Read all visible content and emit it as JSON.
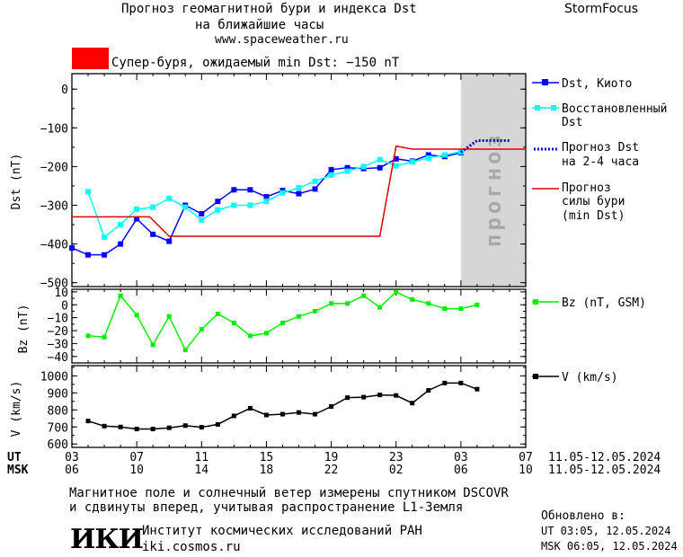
{
  "header": {
    "title_line1": "Прогноз геомагнитной бури и индекса Dst",
    "title_line2": "на ближайшие часы",
    "site": "www.spaceweather.ru",
    "brand": "StormFocus"
  },
  "storm_banner": {
    "text": "Супер-буря, ожидаемый min Dst: −150 nT",
    "color": "#ff0000"
  },
  "forecast_label": "прогноз",
  "legend": {
    "dst_kyoto": "Dst, Киото",
    "restored_1": "Восстановленный",
    "restored_2": "Dst",
    "forecast_1": "Прогноз Dst",
    "forecast_2": "на 2-4 часа",
    "storm_1": "Прогноз",
    "storm_2": "силы бури",
    "storm_3": "(min Dst)",
    "bz": "Bz (nT, GSM)",
    "v": "V (km/s)"
  },
  "axes": {
    "ut_label": "UT",
    "msk_label": "MSK",
    "ut_ticks": [
      "03",
      "07",
      "11",
      "15",
      "19",
      "23",
      "03",
      "07"
    ],
    "msk_ticks": [
      "06",
      "10",
      "14",
      "18",
      "22",
      "02",
      "06",
      "10"
    ],
    "ut_range": "11.05-12.05.2024",
    "msk_range": "11.05-12.05.2024"
  },
  "footer": {
    "note_line1": "Магнитное поле и солнечный ветер измерены спутником DSCOVR",
    "note_line2": "и сдвинуты вперед, учитывая распространение L1-Земля",
    "logo": "ИКИ",
    "institute": "Институт космических исследований РАН",
    "institute_url": "iki.cosmos.ru",
    "updated_label": "Обновлено в:",
    "updated_ut": "UT   03:05, 12.05.2024",
    "updated_msk": "MSK 06:05, 12.05.2024"
  },
  "chart_data": [
    {
      "type": "line",
      "ylabel": "Dst (nT)",
      "ylim": [
        -510,
        40
      ],
      "yticks": [
        0,
        -100,
        -200,
        -300,
        -400,
        -500
      ],
      "xlim": [
        3,
        31
      ],
      "forecast_region": [
        27,
        31
      ],
      "series": [
        {
          "name": "Dst, Киото",
          "color": "#0000ff",
          "marker": "square",
          "x": [
            3,
            4,
            5,
            6,
            7,
            8,
            9,
            10,
            11,
            12,
            13,
            14,
            15,
            16,
            17,
            18,
            19,
            20,
            21,
            22,
            23,
            24,
            25,
            26,
            27
          ],
          "y": [
            -410,
            -428,
            -428,
            -400,
            -335,
            -375,
            -393,
            -300,
            -322,
            -290,
            -260,
            -260,
            -278,
            -262,
            -270,
            -258,
            -208,
            -203,
            -205,
            -203,
            -180,
            -186,
            -170,
            -174,
            -164
          ]
        },
        {
          "name": "Восстановленный Dst",
          "color": "#00ffff",
          "marker": "square",
          "x": [
            4,
            5,
            6,
            7,
            8,
            9,
            10,
            11,
            12,
            13,
            14,
            15,
            16,
            17,
            18,
            19,
            20,
            21,
            22,
            23,
            24,
            25,
            26,
            27
          ],
          "y": [
            -265,
            -382,
            -350,
            -310,
            -305,
            -282,
            -305,
            -338,
            -312,
            -300,
            -300,
            -290,
            -268,
            -255,
            -238,
            -222,
            -212,
            -200,
            -182,
            -198,
            -188,
            -178,
            -170,
            -162
          ]
        },
        {
          "name": "Прогноз Dst на 2-4 часа",
          "color": "#0000cc",
          "dashed": true,
          "x": [
            27,
            28,
            29,
            30
          ],
          "y": [
            -163,
            -133,
            -133,
            -133
          ]
        },
        {
          "name": "Прогноз силы бури (min Dst)",
          "color": "#dd0000",
          "x": [
            3,
            7.8,
            9,
            9.3,
            9.3,
            22,
            23,
            24,
            31
          ],
          "y": [
            -330,
            -330,
            -380,
            -380,
            -380,
            -380,
            -147,
            -155,
            -155
          ]
        }
      ]
    },
    {
      "type": "line",
      "ylabel": "Bz (nT)",
      "ylim": [
        -45,
        12
      ],
      "yticks": [
        10,
        0,
        -10,
        -20,
        -30,
        -40
      ],
      "xlim": [
        3,
        31
      ],
      "series": [
        {
          "name": "Bz (nT, GSM)",
          "color": "#00ee00",
          "marker": "square",
          "x": [
            4,
            5,
            6,
            7,
            8,
            9,
            10,
            11,
            12,
            13,
            14,
            15,
            16,
            17,
            18,
            19,
            20,
            21,
            22,
            23,
            24,
            25,
            26,
            27,
            28
          ],
          "y": [
            -24,
            -25,
            7,
            -8,
            -31,
            -9,
            -35,
            -19,
            -7,
            -14,
            -24,
            -22,
            -14,
            -9,
            -5,
            1,
            1,
            7,
            -2,
            10,
            4,
            1,
            -3,
            -3,
            0
          ]
        }
      ]
    },
    {
      "type": "line",
      "ylabel": "V (km/s)",
      "ylim": [
        580,
        1060
      ],
      "yticks": [
        1000,
        900,
        800,
        700,
        600
      ],
      "xlim": [
        3,
        31
      ],
      "series": [
        {
          "name": "V (km/s)",
          "color": "#000000",
          "marker": "square",
          "x": [
            4,
            5,
            6,
            7,
            8,
            9,
            10,
            11,
            12,
            13,
            14,
            15,
            16,
            17,
            18,
            19,
            20,
            21,
            22,
            23,
            24,
            25,
            26,
            27,
            28
          ],
          "y": [
            735,
            705,
            700,
            688,
            688,
            695,
            708,
            698,
            715,
            765,
            810,
            770,
            775,
            785,
            775,
            820,
            872,
            875,
            888,
            885,
            840,
            915,
            958,
            958,
            922
          ]
        }
      ]
    }
  ]
}
